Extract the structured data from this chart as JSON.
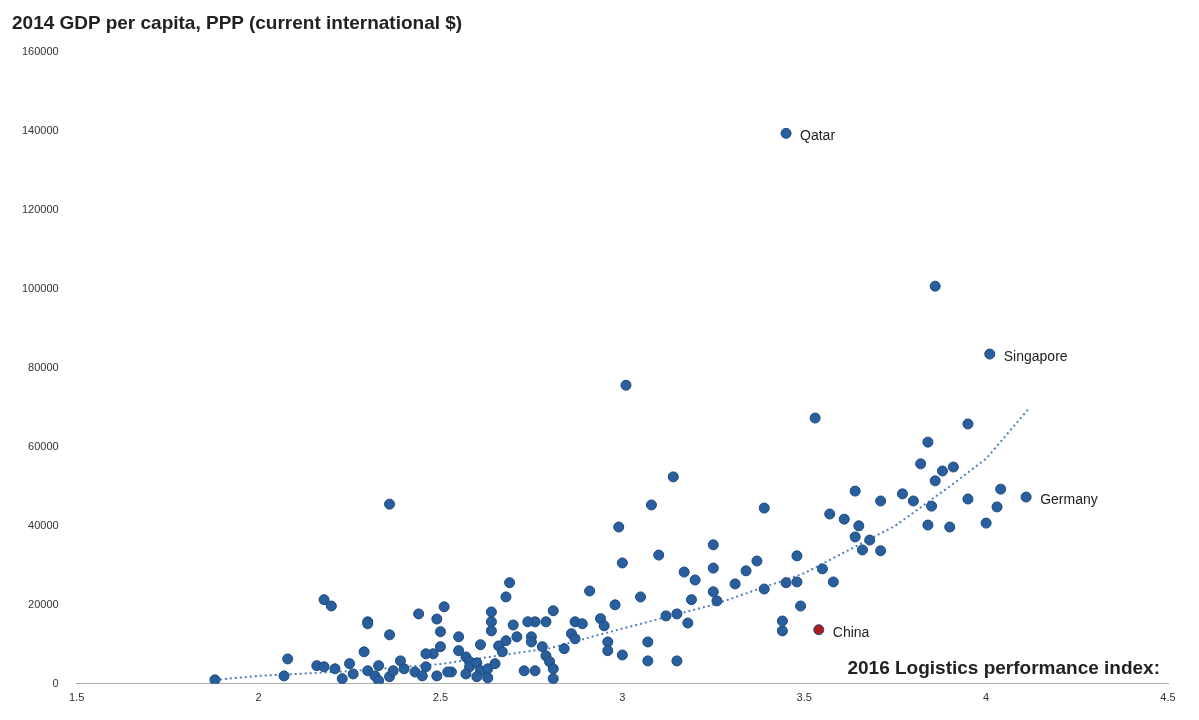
{
  "chart_data": {
    "type": "scatter",
    "ylabel": "2014 GDP per capita, PPP (current international $)",
    "xlabel": "2016 Logistics performance index:",
    "xlim": [
      1.5,
      4.5
    ],
    "xticks": [
      1.5,
      2,
      2.5,
      3,
      3.5,
      4,
      4.5
    ],
    "ylim": [
      0,
      160000
    ],
    "yticks": [
      0,
      20000,
      40000,
      60000,
      80000,
      100000,
      120000,
      140000,
      160000
    ],
    "grid": false,
    "legend": false,
    "marker": "circle",
    "series": [
      {
        "color": "#2a5f9e",
        "x": [
          3.45,
          3.86,
          4.01,
          3.01,
          3.53,
          3.14,
          3.08,
          2.99,
          3.39,
          3.57,
          3.61,
          3.25,
          3.0,
          3.1,
          3.17,
          3.2,
          3.25,
          3.34,
          3.37,
          3.48,
          3.55,
          3.58,
          3.31,
          3.39,
          3.45,
          3.48,
          2.91,
          2.98,
          3.05,
          3.19,
          3.25,
          3.26,
          3.49,
          3.95,
          3.84,
          3.82,
          3.88,
          3.91,
          3.86,
          3.64,
          3.71,
          3.77,
          3.8,
          3.85,
          3.95,
          4.04,
          4.03,
          4.0,
          3.84,
          3.9,
          3.65,
          3.64,
          3.68,
          3.66,
          3.71,
          4.11,
          3.44,
          3.44,
          3.18,
          3.12,
          3.15,
          3.07,
          3.0,
          3.07,
          3.15,
          2.69,
          2.68,
          2.94,
          2.95,
          2.96,
          2.96,
          2.87,
          2.89,
          2.86,
          2.87,
          2.84,
          2.81,
          2.79,
          2.76,
          2.74,
          2.7,
          2.75,
          2.75,
          2.71,
          2.68,
          2.66,
          2.64,
          2.64,
          2.64,
          2.61,
          2.67,
          2.78,
          2.79,
          2.8,
          2.81,
          2.81,
          2.73,
          2.76,
          2.51,
          2.49,
          2.5,
          2.5,
          2.55,
          2.55,
          2.57,
          2.58,
          2.58,
          2.6,
          2.61,
          2.63,
          2.65,
          2.53,
          2.57,
          2.6,
          2.63,
          2.48,
          2.18,
          2.2,
          2.3,
          2.3,
          2.36,
          2.44,
          2.29,
          2.08,
          2.07,
          1.88,
          2.16,
          2.18,
          2.21,
          2.25,
          2.23,
          2.26,
          2.3,
          2.33,
          2.32,
          2.36,
          2.39,
          2.4,
          2.43,
          2.37,
          2.46,
          2.46,
          2.49,
          2.52,
          2.45,
          2.33,
          2.36
        ],
        "values": [
          139400,
          100700,
          83500,
          75600,
          67300,
          52400,
          45300,
          39700,
          44500,
          43000,
          41700,
          35200,
          30600,
          32600,
          28300,
          26300,
          29300,
          28600,
          31100,
          32400,
          29100,
          25800,
          25300,
          24000,
          25600,
          25800,
          23500,
          20000,
          22000,
          21300,
          23300,
          21000,
          19700,
          65800,
          61200,
          55700,
          53900,
          54900,
          51400,
          48800,
          46300,
          48100,
          46300,
          45000,
          46800,
          49300,
          44800,
          40700,
          40200,
          39700,
          40000,
          37200,
          36400,
          33900,
          33700,
          47300,
          15900,
          13400,
          15400,
          17200,
          17700,
          10600,
          7300,
          5800,
          5800,
          25600,
          22000,
          16500,
          14700,
          10600,
          8400,
          15700,
          15200,
          12700,
          11400,
          8900,
          18500,
          15700,
          15700,
          15700,
          14900,
          11900,
          10600,
          11900,
          10900,
          9600,
          18200,
          15700,
          13400,
          9900,
          8100,
          9400,
          7100,
          5600,
          3800,
          1300,
          3300,
          3300,
          19500,
          16400,
          13200,
          9400,
          11900,
          8400,
          6800,
          5600,
          4300,
          5300,
          3300,
          3800,
          5100,
          3000,
          2500,
          1800,
          1500,
          7600,
          21300,
          19700,
          15700,
          15200,
          12400,
          17700,
          8100,
          6300,
          2000,
          1000,
          4600,
          4300,
          3800,
          5100,
          1300,
          2500,
          3300,
          4600,
          2000,
          1800,
          5800,
          3800,
          3000,
          3300,
          7600,
          4300,
          2000,
          3000,
          2000,
          800,
          45500
        ]
      },
      {
        "color": "#b01c1c",
        "x": [
          3.54
        ],
        "values": [
          13700
        ]
      },
      {
        "type": "line",
        "color": "#4f81bd",
        "marker": "none",
        "line_style": "dotted",
        "x": [
          1.88,
          2.0,
          2.25,
          2.5,
          2.8,
          3.0,
          3.25,
          3.5,
          3.75,
          3.9,
          4.0,
          4.12
        ],
        "values": [
          1000,
          2000,
          3200,
          5000,
          9000,
          14000,
          20000,
          28000,
          40000,
          50000,
          57000,
          70000
        ]
      }
    ],
    "annotations": [
      {
        "text": "Qatar",
        "x": 3.45,
        "y": 139400
      },
      {
        "text": "Singapore",
        "x": 4.01,
        "y": 83500
      },
      {
        "text": "Germany",
        "x": 4.11,
        "y": 47300
      },
      {
        "text": "China",
        "x": 3.54,
        "y": 13700
      }
    ]
  }
}
